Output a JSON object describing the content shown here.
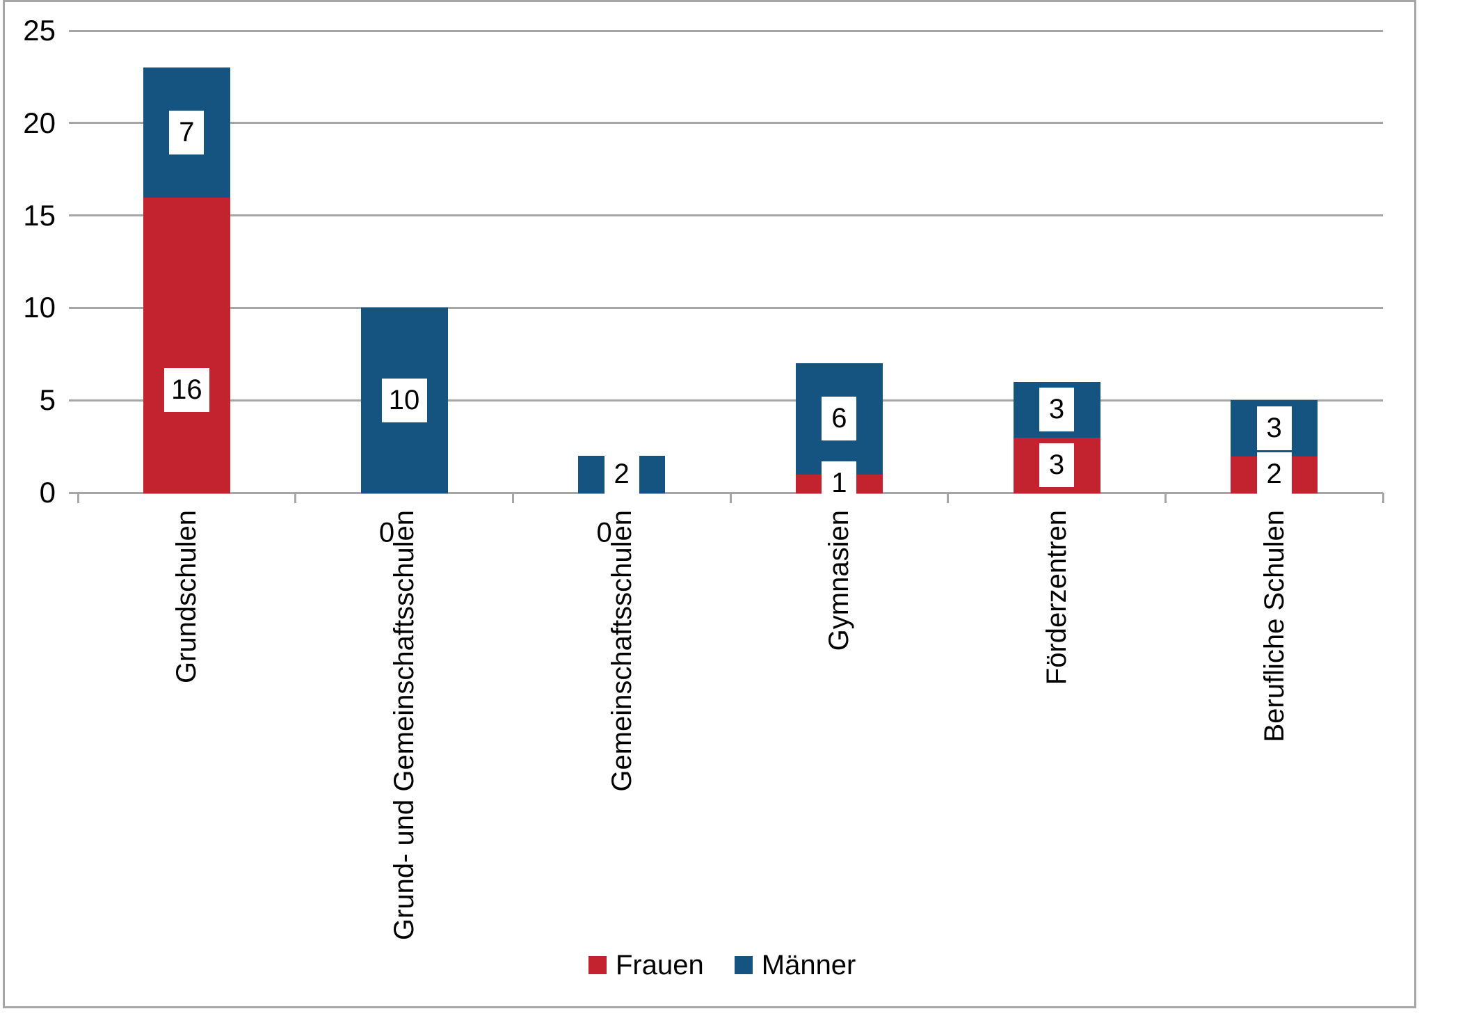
{
  "chart_data": {
    "type": "bar",
    "stacked": true,
    "title": "",
    "xlabel": "",
    "ylabel": "",
    "categories": [
      "Grundschulen",
      "Grund- und Gemeinschaftsschulen",
      "Gemeinschaftsschulen",
      "Gymnasien",
      "Förderzentren",
      "Berufliche Schulen"
    ],
    "series": [
      {
        "name": "Frauen",
        "color": "#C2232E",
        "values": [
          16,
          0,
          0,
          1,
          3,
          2
        ]
      },
      {
        "name": "Männer",
        "color": "#155480",
        "values": [
          7,
          10,
          2,
          6,
          3,
          3
        ]
      }
    ],
    "totals": [
      23,
      10,
      2,
      7,
      6,
      5
    ],
    "ylim": [
      0,
      25
    ],
    "yticks": [
      0,
      5,
      10,
      15,
      20,
      25
    ],
    "grid": true,
    "gridline_color": "#A6A6A6",
    "axis_color": "#A6A6A6",
    "border_color": "#A6A6A6",
    "data_labels": {
      "visible": true,
      "background": "#FFFFFF",
      "text_color": "#000000"
    },
    "category_label_rotation": "90deg-bottom-to-top",
    "legend_position": "bottom"
  },
  "legend": {
    "items": [
      {
        "label": "Frauen",
        "color": "#C2232E"
      },
      {
        "label": "Männer",
        "color": "#155480"
      }
    ]
  }
}
